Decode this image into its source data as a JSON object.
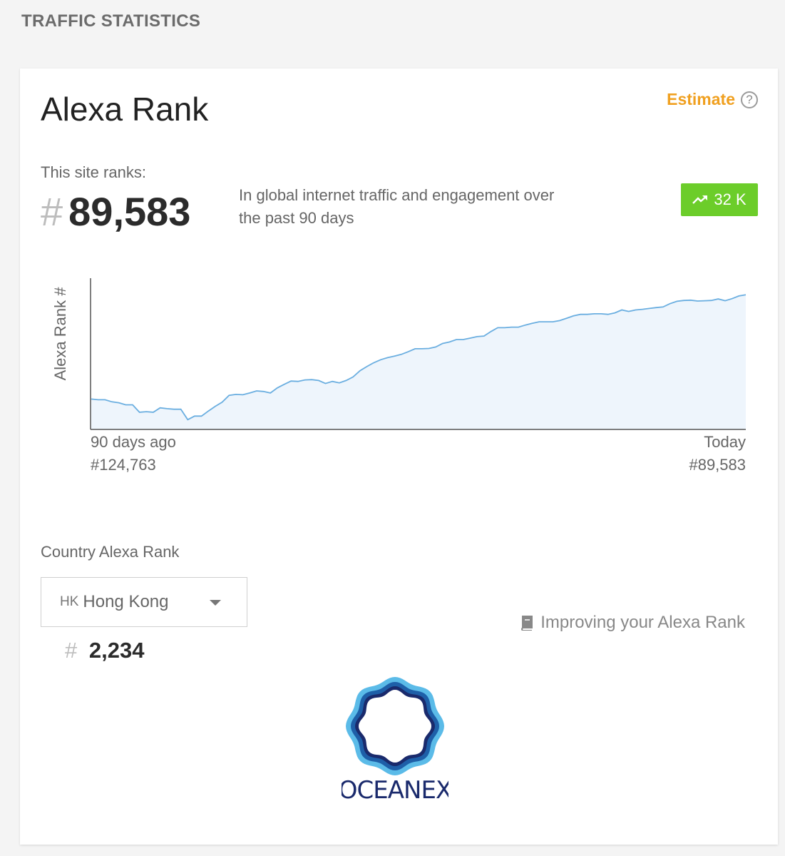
{
  "section_title": "TRAFFIC STATISTICS",
  "card": {
    "title": "Alexa Rank",
    "estimate_label": "Estimate",
    "help_glyph": "?",
    "ranks_label": "This site ranks:",
    "rank_hash": "#",
    "global_rank": "89,583",
    "description": "In global internet traffic and engagement over the past 90 days",
    "delta": {
      "label": "32 K",
      "icon": "trending-up-icon",
      "color": "#6ccd2a"
    }
  },
  "chart_data": {
    "type": "area",
    "ylabel": "Alexa Rank #",
    "y_inverted": true,
    "ylim": [
      135000,
      84000
    ],
    "color": "#6aaee0",
    "fill": "#eef5fc",
    "start_label": "90 days ago",
    "start_rank": "#124,763",
    "end_label": "Today",
    "end_rank": "#89,583",
    "values": [
      124763,
      125000,
      125000,
      125700,
      126000,
      126700,
      126700,
      129200,
      129000,
      129200,
      127700,
      128000,
      128200,
      128200,
      131700,
      130500,
      130500,
      128800,
      127200,
      125800,
      123500,
      123200,
      123300,
      122700,
      122000,
      122200,
      122700,
      121000,
      119800,
      118700,
      118800,
      118300,
      118200,
      118500,
      119500,
      118800,
      119300,
      118500,
      117300,
      115200,
      113800,
      112500,
      111500,
      110800,
      110300,
      109700,
      108800,
      107800,
      107800,
      107700,
      107200,
      106000,
      105500,
      104700,
      104700,
      104200,
      103700,
      103500,
      102000,
      100700,
      100700,
      100500,
      100500,
      99800,
      99200,
      98700,
      98700,
      98700,
      98300,
      97500,
      96700,
      96200,
      96200,
      96000,
      96000,
      96200,
      95700,
      94700,
      95200,
      94700,
      94500,
      94200,
      93900,
      93700,
      92600,
      91800,
      91500,
      91400,
      91700,
      91600,
      91500,
      91000,
      91600,
      90900,
      90000,
      89583
    ]
  },
  "country": {
    "label": "Country Alexa Rank",
    "code": "HK",
    "name": "Hong Kong",
    "rank_hash": "#",
    "rank": "2,234"
  },
  "improve_link": {
    "label": "Improving your Alexa Rank",
    "icon": "book-icon"
  },
  "logo": {
    "text": "OCEANEX",
    "colors": [
      "#1a2a6c",
      "#1e5fa8",
      "#5bbbe8"
    ]
  }
}
